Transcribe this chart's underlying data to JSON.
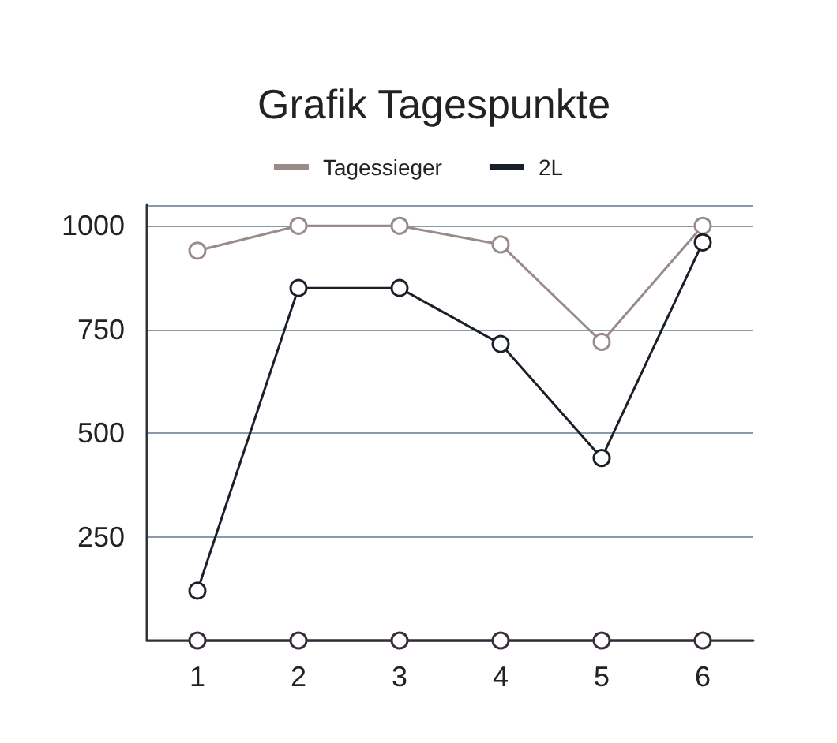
{
  "chart_data": {
    "type": "line",
    "title": "Grafik Tagespunkte",
    "categories": [
      "1",
      "2",
      "3",
      "4",
      "5",
      "6"
    ],
    "series": [
      {
        "name": "Tagessieger",
        "color": "#9a8a8a",
        "values": [
          940,
          1000,
          1000,
          955,
          720,
          1000
        ]
      },
      {
        "name": "2L",
        "color": "#1a1f2a",
        "values": [
          120,
          850,
          850,
          715,
          440,
          960
        ]
      },
      {
        "color": "#3a2a3a",
        "values": [
          0,
          0,
          0,
          0,
          0,
          0
        ]
      }
    ],
    "ylim": [
      0,
      1050
    ],
    "yticks": [
      {
        "value": 0,
        "label": null
      },
      250,
      500,
      750,
      1000
    ],
    "grid": "y",
    "legend": "top",
    "marker": "circle",
    "line_style": "solid"
  }
}
